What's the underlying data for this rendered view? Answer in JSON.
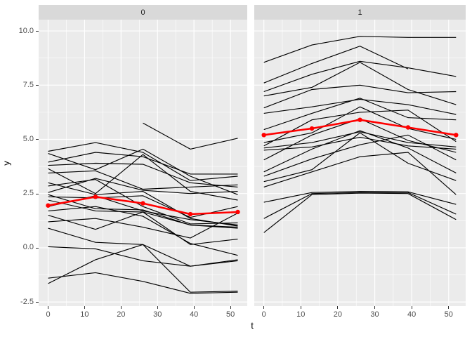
{
  "chart_data": {
    "type": "line",
    "title": "",
    "xlabel": "t",
    "ylabel": "y",
    "legend": "none",
    "grid": "on",
    "panel_background": "#ebebeb",
    "strip_background": "#d9d9d9",
    "grid_color": "#ffffff",
    "line_color": "#000000",
    "mean_color": "#ff0000",
    "tick_text_color": "#4d4d4d",
    "x": [
      0,
      13,
      26,
      39,
      52
    ],
    "xlim": [
      -2.6,
      54.6
    ],
    "ylim": [
      -2.69,
      10.52
    ],
    "x_ticks": [
      {
        "v": 0,
        "label": "0"
      },
      {
        "v": 10,
        "label": "10"
      },
      {
        "v": 20,
        "label": "20"
      },
      {
        "v": 30,
        "label": "30"
      },
      {
        "v": 40,
        "label": "40"
      },
      {
        "v": 50,
        "label": "50"
      }
    ],
    "y_ticks": [
      {
        "v": 10.0,
        "label": "10.0"
      },
      {
        "v": 7.5,
        "label": "7.5"
      },
      {
        "v": 5.0,
        "label": "5.0"
      },
      {
        "v": 2.5,
        "label": "2.5"
      },
      {
        "v": 0.0,
        "label": "0.0"
      },
      {
        "v": -2.5,
        "label": "-2.5"
      }
    ],
    "x_minor": [
      5,
      15,
      25,
      35,
      45
    ],
    "y_minor": [
      -1.25,
      1.25,
      3.75,
      6.25,
      8.75
    ],
    "facets": [
      {
        "label": "0",
        "mean": [
          1.95,
          2.35,
          2.05,
          1.55,
          1.65
        ],
        "series": [
          [
            4.45,
            4.85,
            4.4,
            3.1,
            3.3
          ],
          [
            4.35,
            3.6,
            4.55,
            3.3,
            2.45
          ],
          [
            3.95,
            4.4,
            4.2,
            3.4,
            3.4
          ],
          [
            3.8,
            3.9,
            3.85,
            3.0,
            2.8
          ],
          [
            3.65,
            2.5,
            4.3,
            2.6,
            2.2
          ],
          [
            3.45,
            3.55,
            2.7,
            2.8,
            2.9
          ],
          [
            3.0,
            2.45,
            2.6,
            1.35,
            1.0
          ],
          [
            2.85,
            3.15,
            1.9,
            1.1,
            1.15
          ],
          [
            2.55,
            3.2,
            2.65,
            2.5,
            2.6
          ],
          [
            2.45,
            1.8,
            1.75,
            1.05,
            0.95
          ],
          [
            2.35,
            2.3,
            2.4,
            1.4,
            1.9
          ],
          [
            2.2,
            1.7,
            1.65,
            0.15,
            0.4
          ],
          [
            1.9,
            2.4,
            1.7,
            1.3,
            1.05
          ],
          [
            1.7,
            1.9,
            1.45,
            0.2,
            -0.35
          ],
          [
            1.5,
            0.85,
            1.65,
            1.05,
            0.9
          ],
          [
            1.2,
            1.35,
            0.95,
            0.45,
            1.6
          ],
          [
            0.9,
            0.25,
            0.15,
            -0.85,
            -0.55
          ],
          [
            0.05,
            -0.05,
            -0.6,
            -0.85,
            -0.6
          ],
          [
            -1.65,
            -0.55,
            0.15,
            -2.05,
            -2.0
          ],
          [
            -1.4,
            -1.15,
            -1.55,
            -2.1,
            -2.05
          ],
          [
            null,
            null,
            5.75,
            4.55,
            5.05
          ]
        ]
      },
      {
        "label": "1",
        "mean": [
          5.2,
          5.5,
          5.9,
          5.55,
          5.2
        ],
        "series": [
          [
            8.55,
            9.35,
            9.75,
            9.7,
            9.7
          ],
          [
            7.6,
            8.5,
            9.3,
            8.25,
            null
          ],
          [
            7.2,
            8.0,
            8.6,
            8.3,
            7.9
          ],
          [
            7.0,
            7.4,
            8.55,
            7.3,
            6.6
          ],
          [
            6.45,
            7.3,
            7.5,
            7.15,
            7.2
          ],
          [
            6.2,
            6.5,
            6.85,
            6.6,
            6.15
          ],
          [
            5.45,
            6.2,
            6.9,
            6.0,
            5.9
          ],
          [
            4.85,
            5.3,
            6.5,
            5.5,
            5.0
          ],
          [
            4.7,
            5.9,
            6.25,
            6.35,
            4.9
          ],
          [
            4.6,
            4.85,
            5.35,
            4.85,
            4.65
          ],
          [
            4.5,
            4.65,
            5.1,
            4.7,
            4.55
          ],
          [
            4.05,
            5.2,
            5.95,
            4.95,
            4.4
          ],
          [
            3.5,
            4.55,
            5.4,
            4.6,
            3.45
          ],
          [
            3.3,
            4.1,
            4.75,
            5.2,
            4.05
          ],
          [
            3.05,
            3.6,
            5.3,
            3.9,
            3.1
          ],
          [
            2.8,
            3.5,
            4.2,
            4.4,
            2.45
          ],
          [
            2.1,
            2.55,
            2.6,
            2.58,
            2.0
          ],
          [
            1.35,
            2.5,
            2.55,
            2.55,
            1.55
          ],
          [
            0.7,
            2.45,
            2.52,
            2.5,
            1.3
          ]
        ]
      }
    ]
  }
}
